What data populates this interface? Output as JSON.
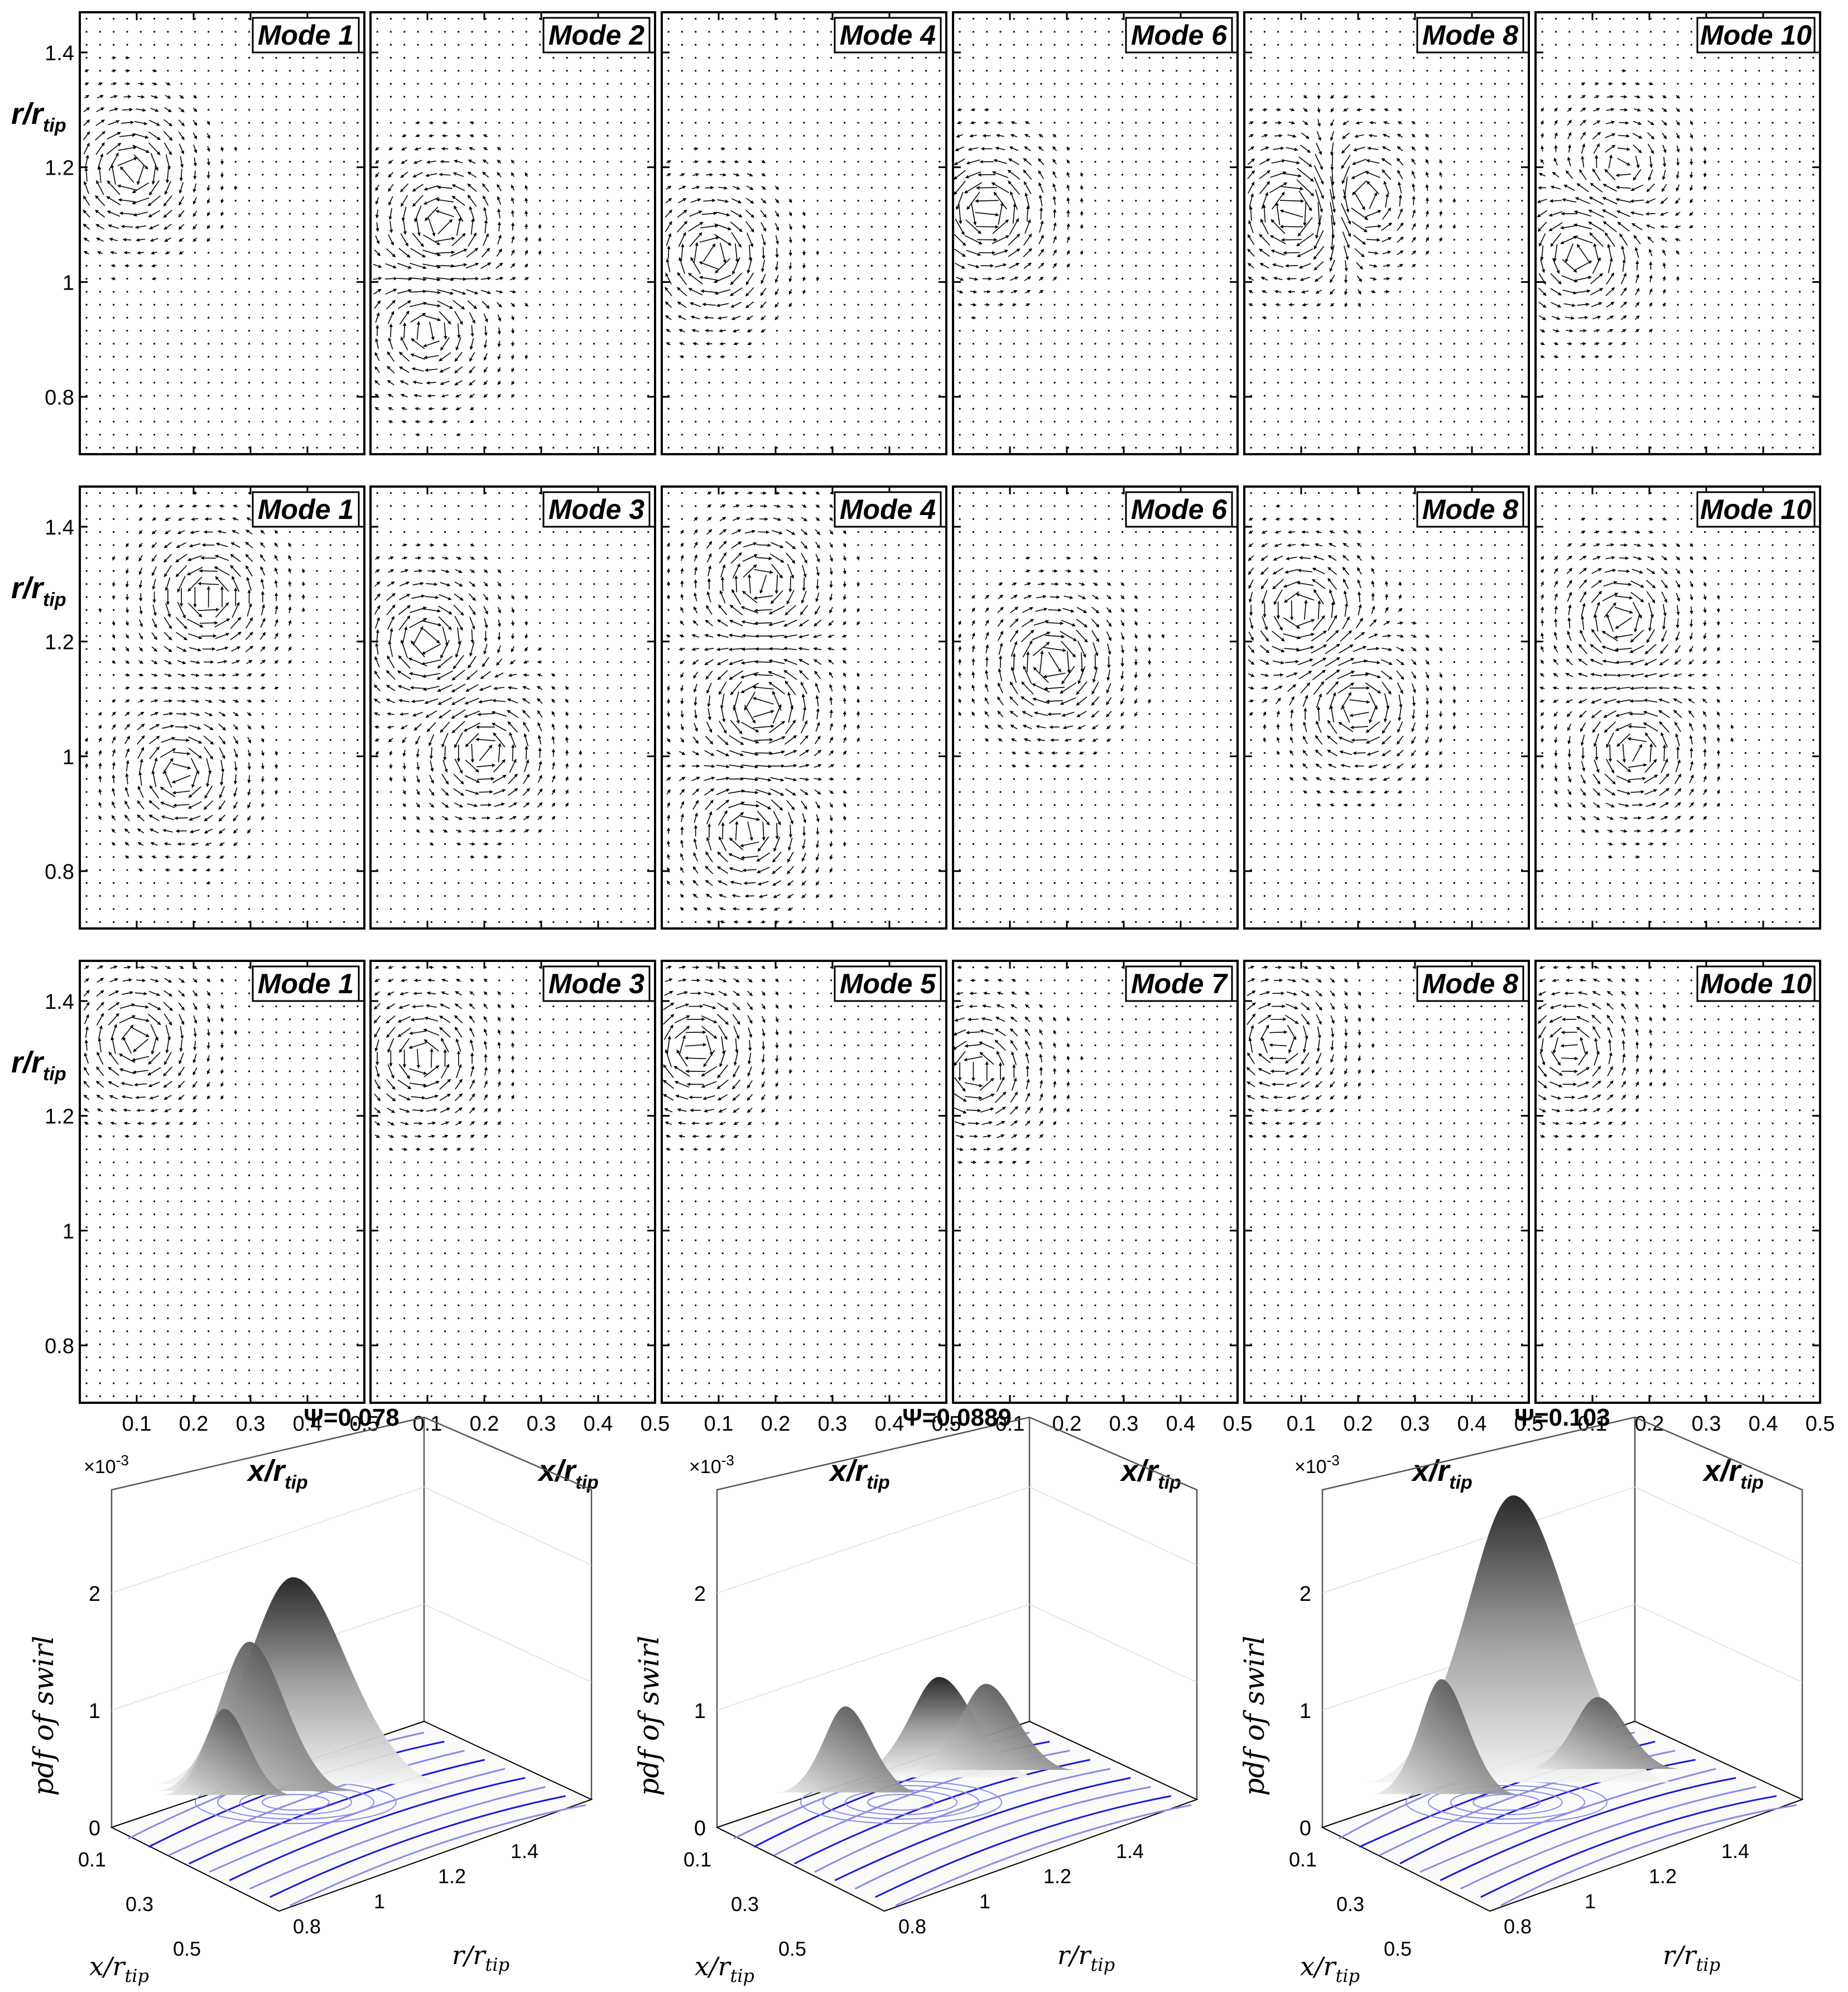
{
  "chart_data": [
    {
      "type": "scatter",
      "description_kind": "vector-field grid",
      "rows": [
        {
          "row": "1",
          "panels": [
            "Mode 1",
            "Mode 2",
            "Mode 4",
            "Mode 6",
            "Mode 8",
            "Mode 10"
          ]
        },
        {
          "row": "2",
          "panels": [
            "Mode 1",
            "Mode 3",
            "Mode 4",
            "Mode 6",
            "Mode 8",
            "Mode 10"
          ]
        },
        {
          "row": "3",
          "panels": [
            "Mode 1",
            "Mode 3",
            "Mode 5",
            "Mode 7",
            "Mode 8",
            "Mode 10"
          ]
        }
      ],
      "x_ticks": [
        "0.1",
        "0.2",
        "0.3",
        "0.4",
        "0.5"
      ],
      "y_ticks": [
        "0.8",
        "1",
        "1.2",
        "1.4"
      ],
      "xlim": [
        0.0,
        0.5
      ],
      "ylim": [
        0.7,
        1.47
      ],
      "ylabel_main": "r/r",
      "ylabel_sub": "tip",
      "xlabel_main": "x/r",
      "xlabel_sub": "tip"
    },
    {
      "type": "area",
      "description_kind": "3D pdf surfaces",
      "panels": [
        {
          "title": "Ψ=0.078"
        },
        {
          "title": "Ψ=0.0889"
        },
        {
          "title": "Ψ=0.103"
        }
      ],
      "z_ticks": [
        "0",
        "1",
        "2"
      ],
      "z_exponent": "×10",
      "z_exponent_power": "-3",
      "x_ticks": [
        "0.1",
        "0.3",
        "0.5"
      ],
      "r_ticks": [
        "0.8",
        "1",
        "1.2",
        "1.4"
      ],
      "zlabel": "pdf of swirl",
      "xlabel_main": "x/r",
      "xlabel_sub": "tip",
      "rlabel_main": "r/r",
      "rlabel_sub": "tip"
    }
  ],
  "colors": {
    "arrow": "#000000",
    "streamline": "#1a1ad6",
    "streamline_light": "#8a8ae8",
    "surface_dark": "#2a2a2a",
    "surface_light": "#f2f2f2"
  }
}
